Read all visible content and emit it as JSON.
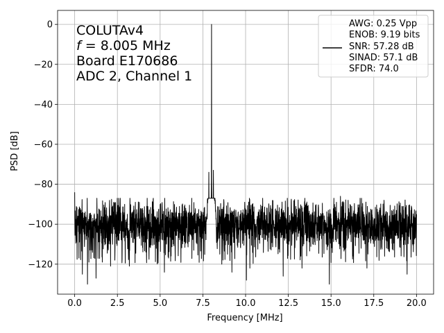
{
  "chart_data": {
    "type": "line",
    "xlabel": "Frequency [MHz]",
    "ylabel": "PSD [dB]",
    "xlim": [
      -1,
      21
    ],
    "ylim": [
      -135,
      7
    ],
    "grid": true,
    "x_ticks": [
      0,
      2.5,
      5,
      7.5,
      10,
      12.5,
      15,
      17.5,
      20
    ],
    "x_tick_labels": [
      "0.0",
      "2.5",
      "5.0",
      "7.5",
      "10.0",
      "12.5",
      "15.0",
      "17.5",
      "20.0"
    ],
    "y_ticks": [
      0,
      -20,
      -40,
      -60,
      -80,
      -100,
      -120
    ],
    "y_tick_labels": [
      "0",
      "−20",
      "−40",
      "−60",
      "−80",
      "−100",
      "−120"
    ],
    "annotation": {
      "line1": "COLUTAv4",
      "line2_italic": "f",
      "line2_rest": " = 8.005 MHz",
      "line3": "Board E170686",
      "line4": "ADC 2, Channel 1"
    },
    "legend": {
      "placement": "top-right",
      "lines": [
        "AWG: 0.25 Vpp",
        "ENOB: 9.19 bits",
        "SNR: 57.28 dB",
        "SINAD: 57.1 dB",
        "SFDR: 74.0"
      ]
    },
    "series": [
      {
        "color": "#000000",
        "fundamental": {
          "x": 8.005,
          "y": 0
        },
        "noise_floor": -100,
        "noise_floor_range": [
          -122,
          -87
        ],
        "start": {
          "x": 0,
          "y": -84
        },
        "end": {
          "x": 20,
          "y": -95
        },
        "spur": {
          "x_range": [
            7.7,
            8.3
          ],
          "peak_y": -74
        },
        "deep_dips": [
          {
            "x": 0.45,
            "y": -125
          },
          {
            "x": 0.75,
            "y": -130
          },
          {
            "x": 1.25,
            "y": -127
          },
          {
            "x": 2.1,
            "y": -121
          },
          {
            "x": 3.2,
            "y": -121
          },
          {
            "x": 5.25,
            "y": -124
          },
          {
            "x": 9.2,
            "y": -124
          },
          {
            "x": 10.05,
            "y": -128
          },
          {
            "x": 10.25,
            "y": -122
          },
          {
            "x": 12.2,
            "y": -126
          },
          {
            "x": 13.3,
            "y": -122
          },
          {
            "x": 14.9,
            "y": -130
          },
          {
            "x": 17.1,
            "y": -122
          },
          {
            "x": 19.45,
            "y": -125
          }
        ],
        "high_peaks": [
          {
            "x": 3.55,
            "y": -89
          },
          {
            "x": 6.85,
            "y": -87
          },
          {
            "x": 9.95,
            "y": -89
          },
          {
            "x": 15.55,
            "y": -86
          },
          {
            "x": 16.0,
            "y": -88
          },
          {
            "x": 18.1,
            "y": -88
          }
        ]
      }
    ]
  }
}
